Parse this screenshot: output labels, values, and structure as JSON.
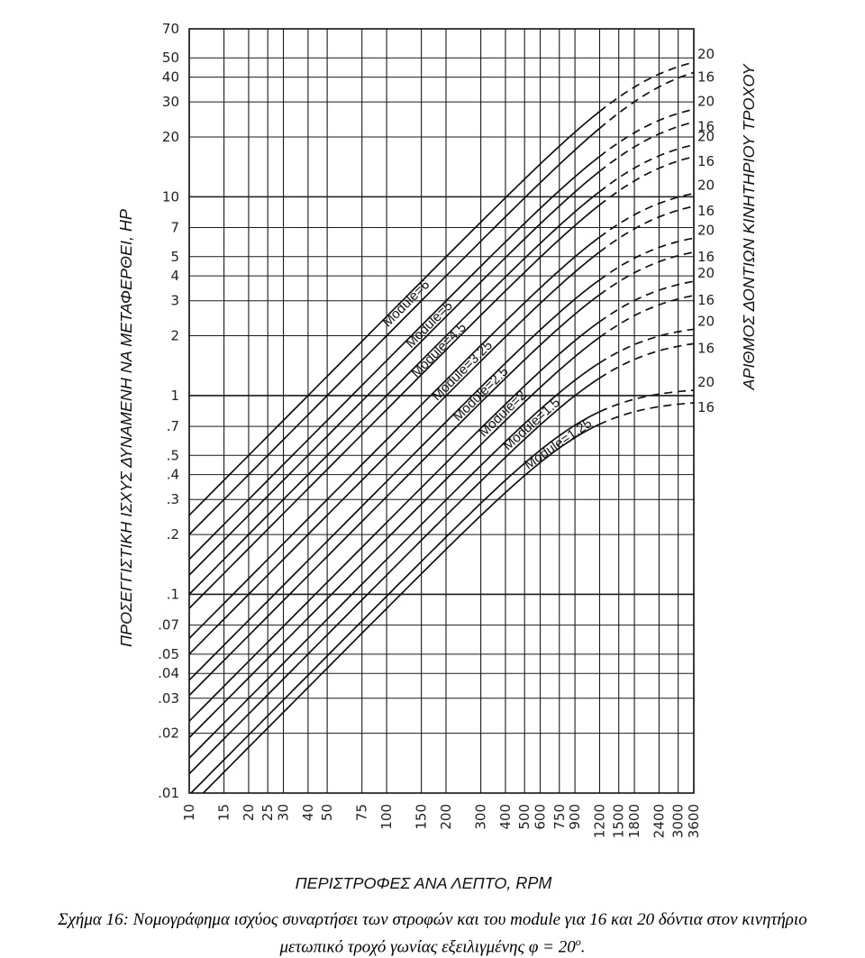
{
  "chart_data": {
    "type": "line",
    "xscale": "log",
    "yscale": "log",
    "xlim": [
      10,
      3600
    ],
    "ylim": [
      0.01,
      70
    ],
    "grid": true,
    "xlabel": "ΠΕΡΙΣΤΡΟΦΕΣ ΑΝΑ ΛΕΠΤΟ, RPM",
    "ylabel": "ΠΡΟΣΕΓΓΙΣΤΙΚΗ ΙΣΧΥΣ ΔΥΝΑΜΕΝΗ ΝΑ ΜΕΤΑΦΕΡΘΕΙ, HP",
    "right_label": "ΑΡΙΘΜΟΣ ΔΟΝΤΙΩΝ ΚΙΝΗΤΗΡΙΟΥ ΤΡΟΧΟΥ",
    "x_ticks": [
      {
        "value": 10,
        "label": "10"
      },
      {
        "value": 15,
        "label": "15"
      },
      {
        "value": 20,
        "label": "20"
      },
      {
        "value": 25,
        "label": "25"
      },
      {
        "value": 30,
        "label": "30"
      },
      {
        "value": 40,
        "label": "40"
      },
      {
        "value": 50,
        "label": "50"
      },
      {
        "value": 75,
        "label": "75"
      },
      {
        "value": 100,
        "label": "100"
      },
      {
        "value": 150,
        "label": "150"
      },
      {
        "value": 200,
        "label": "200"
      },
      {
        "value": 300,
        "label": "300"
      },
      {
        "value": 400,
        "label": "400"
      },
      {
        "value": 500,
        "label": "500"
      },
      {
        "value": 600,
        "label": "600"
      },
      {
        "value": 750,
        "label": "750"
      },
      {
        "value": 900,
        "label": "900"
      },
      {
        "value": 1200,
        "label": "1200"
      },
      {
        "value": 1500,
        "label": "1500"
      },
      {
        "value": 1800,
        "label": "1800"
      },
      {
        "value": 2400,
        "label": "2400"
      },
      {
        "value": 3000,
        "label": "3000"
      },
      {
        "value": 3600,
        "label": "3600"
      }
    ],
    "y_ticks": [
      {
        "value": 70,
        "label": "70"
      },
      {
        "value": 50,
        "label": "50"
      },
      {
        "value": 40,
        "label": "40"
      },
      {
        "value": 30,
        "label": "30"
      },
      {
        "value": 20,
        "label": "20"
      },
      {
        "value": 10,
        "label": "10"
      },
      {
        "value": 7,
        "label": "7"
      },
      {
        "value": 5,
        "label": "5"
      },
      {
        "value": 4,
        "label": "4"
      },
      {
        "value": 3,
        "label": "3"
      },
      {
        "value": 2,
        "label": "2"
      },
      {
        "value": 1,
        "label": "1"
      },
      {
        "value": 0.7,
        "label": ".7"
      },
      {
        "value": 0.5,
        "label": ".5"
      },
      {
        "value": 0.4,
        "label": ".4"
      },
      {
        "value": 0.3,
        "label": ".3"
      },
      {
        "value": 0.2,
        "label": ".2"
      },
      {
        "value": 0.1,
        "label": ".1"
      },
      {
        "value": 0.07,
        "label": ".07"
      },
      {
        "value": 0.05,
        "label": ".05"
      },
      {
        "value": 0.04,
        "label": ".04"
      },
      {
        "value": 0.03,
        "label": ".03"
      },
      {
        "value": 0.02,
        "label": ".02"
      },
      {
        "value": 0.01,
        "label": ".01"
      }
    ],
    "series": [
      {
        "name": "Module=6",
        "label_at": 130,
        "curves": [
          {
            "teeth": "20",
            "cap": 54,
            "p10": 0.25
          },
          {
            "teeth": "16",
            "cap": 50,
            "p10": 0.2
          }
        ]
      },
      {
        "name": "Module=5",
        "label_at": 170,
        "curves": [
          {
            "teeth": "20",
            "cap": 31,
            "p10": 0.15
          },
          {
            "teeth": "16",
            "cap": 27,
            "p10": 0.125
          }
        ]
      },
      {
        "name": "Module=4.5",
        "label_at": 190,
        "curves": [
          {
            "teeth": "20",
            "cap": 20.5,
            "p10": 0.1
          },
          {
            "teeth": "16",
            "cap": 18,
            "p10": 0.085
          }
        ]
      },
      {
        "name": "Module=3.25",
        "label_at": 250,
        "curves": [
          {
            "teeth": "20",
            "cap": 11.5,
            "p10": 0.06
          },
          {
            "teeth": "16",
            "cap": 10,
            "p10": 0.05
          }
        ]
      },
      {
        "name": "Module=2.5",
        "label_at": 310,
        "curves": [
          {
            "teeth": "20",
            "cap": 6.8,
            "p10": 0.037
          },
          {
            "teeth": "16",
            "cap": 5.8,
            "p10": 0.031
          }
        ]
      },
      {
        "name": "Module=2",
        "label_at": 400,
        "curves": [
          {
            "teeth": "20",
            "cap": 4.1,
            "p10": 0.023
          },
          {
            "teeth": "16",
            "cap": 3.5,
            "p10": 0.019
          }
        ]
      },
      {
        "name": "Module=1.5",
        "label_at": 560,
        "curves": [
          {
            "teeth": "20",
            "cap": 2.3,
            "p10": 0.015
          },
          {
            "teeth": "16",
            "cap": 1.95,
            "p10": 0.0125
          }
        ]
      },
      {
        "name": "Module=1.25",
        "label_at": 760,
        "curves": [
          {
            "teeth": "20",
            "cap": 1.1,
            "p10": 0.0098
          },
          {
            "teeth": "16",
            "cap": 0.95,
            "p10": 0.0085
          }
        ]
      }
    ]
  },
  "caption": {
    "line1": "Σχήμα 16: Νομογράφημα ισχύος συναρτήσει των στροφών και του module για 16 και 20 δόντια στον κινητήριο",
    "line2": "μετωπικό τροχό γωνίας εξειλιγμένης φ = 20",
    "line2_sup": "ο",
    "line2_end": "."
  }
}
